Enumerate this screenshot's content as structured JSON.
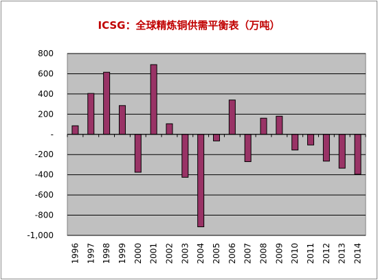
{
  "chart_data": {
    "type": "bar",
    "title": "ICSG：全球精炼铜供需平衡表（万吨）",
    "categories": [
      "1996",
      "1997",
      "1998",
      "1999",
      "2000",
      "2001",
      "2002",
      "2003",
      "2004",
      "2005",
      "2006",
      "2007",
      "2008",
      "2009",
      "2010",
      "2011",
      "2012",
      "2013",
      "2014"
    ],
    "values": [
      85,
      405,
      615,
      285,
      -375,
      690,
      105,
      -425,
      -915,
      -65,
      340,
      -270,
      160,
      180,
      -155,
      -105,
      -265,
      -335,
      -395
    ],
    "ylim": [
      -1000,
      800
    ],
    "yticks": [
      800,
      600,
      400,
      200,
      0,
      -200,
      -400,
      -600,
      -800,
      -1000
    ],
    "ytick_labels": [
      "800",
      "600",
      "400",
      "200",
      "-",
      "-200",
      "-400",
      "-600",
      "-800",
      "-1,000"
    ],
    "xlabel": "",
    "ylabel": "",
    "grid": true,
    "legend": "none",
    "colors": {
      "bar_fill": "#993366",
      "plot_bg": "#c0c0c0",
      "gridline": "#000000",
      "title": "#c00000"
    }
  }
}
